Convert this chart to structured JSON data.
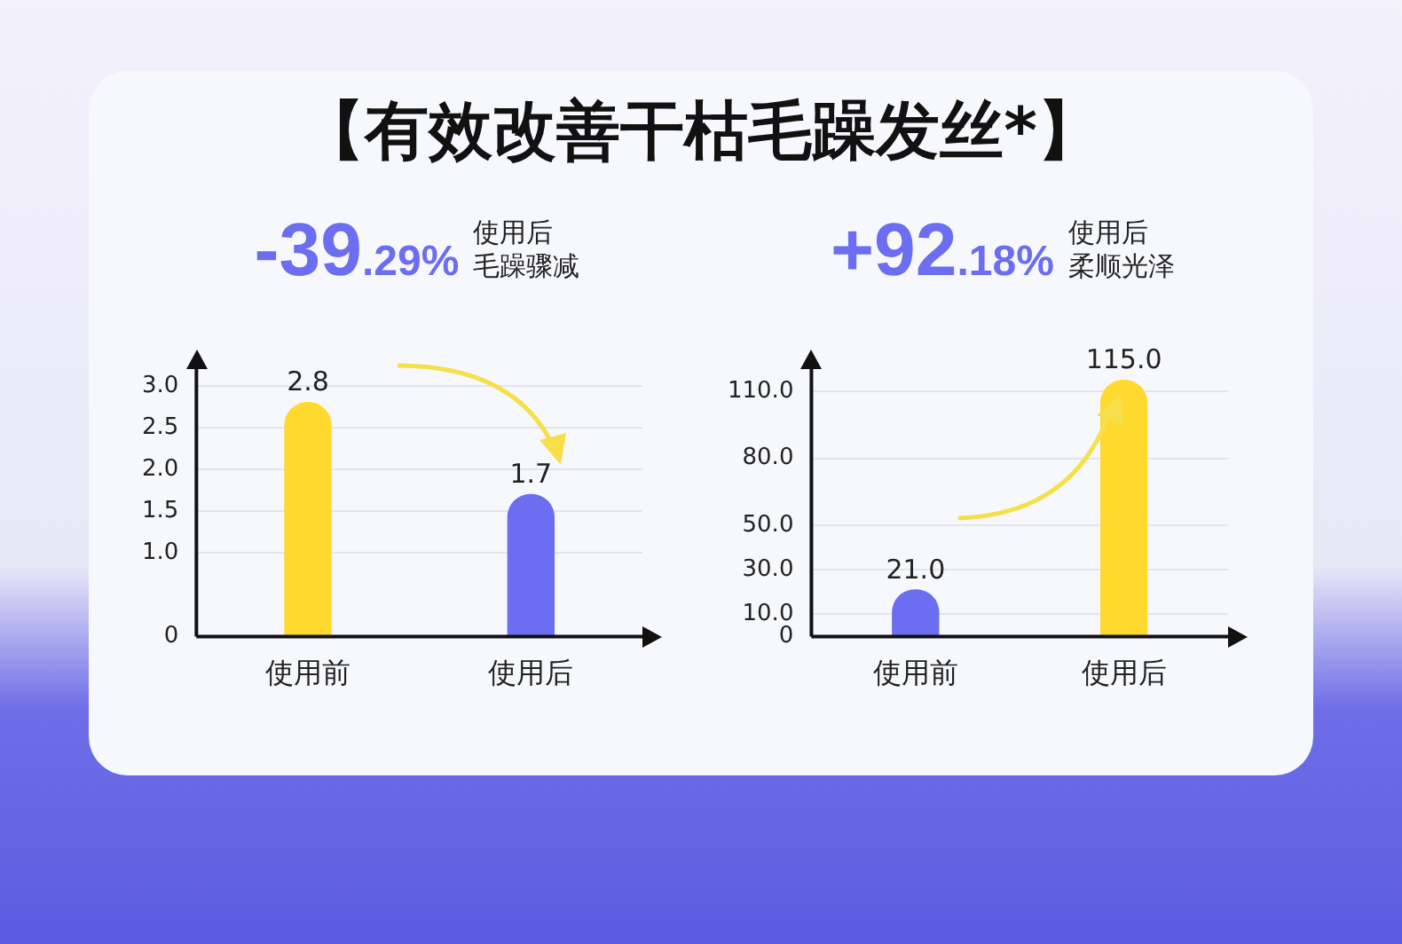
{
  "chart_data": [
    {
      "type": "bar",
      "title": "【有效改善干枯毛躁发丝*】",
      "subtitle": "-39.29%",
      "annotations": [
        "使用后",
        "毛躁骤减"
      ],
      "categories": [
        "使用前",
        "使用后"
      ],
      "values": [
        2.8,
        1.7
      ],
      "colors": [
        "#ffd92e",
        "#6b6ef0"
      ],
      "value_labels": [
        "2.8",
        "1.7"
      ],
      "ylim": [
        0,
        3.2
      ],
      "yticks": [
        0,
        {
          "value": 1,
          "label": "1.0"
        },
        {
          "value": 1.5,
          "label": "1.5"
        },
        {
          "value": 2,
          "label": "2.0"
        },
        {
          "value": 2.5,
          "label": "2.5"
        },
        {
          "value": 3,
          "label": "3.0"
        }
      ],
      "grid": "y"
    },
    {
      "type": "bar",
      "subtitle": "+92.18%",
      "annotations": [
        "使用后",
        "柔顺光泽"
      ],
      "categories": [
        "使用前",
        "使用后"
      ],
      "values": [
        21,
        115
      ],
      "colors": [
        "#6b6ef0",
        "#ffd92e"
      ],
      "value_labels": [
        "21.0",
        "115.0"
      ],
      "ylim": [
        0,
        120
      ],
      "yticks": [
        0,
        {
          "value": 10,
          "label": "10.0"
        },
        {
          "value": 30,
          "label": "30.0"
        },
        {
          "value": 50,
          "label": "50.0"
        },
        {
          "value": 80,
          "label": "80.0"
        },
        {
          "value": 110,
          "label": "110.0"
        }
      ],
      "grid": "y"
    }
  ]
}
